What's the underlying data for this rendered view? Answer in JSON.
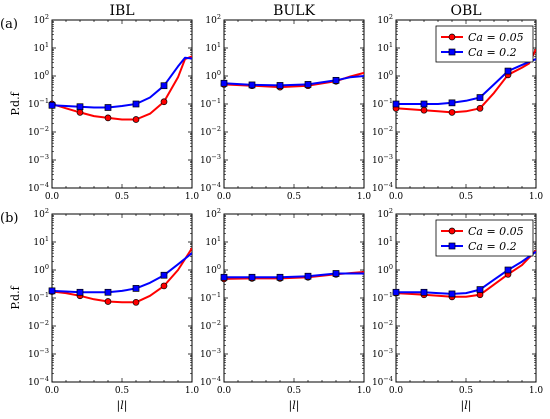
{
  "chart_data": [
    {
      "type": "line",
      "panel": "(a)",
      "row": 0,
      "col": 0,
      "title": "IBL",
      "ylabel": "P.d.f",
      "xlabel": "",
      "xlim": [
        0.0,
        1.0
      ],
      "ylim": [
        0.0001,
        100
      ],
      "yscale": "log",
      "legend": null,
      "series": [
        {
          "name": "Ca = 0.05",
          "color": "#ff0000",
          "marker": "circle",
          "x": [
            0.0,
            0.1,
            0.2,
            0.3,
            0.4,
            0.5,
            0.6,
            0.7,
            0.8,
            0.9,
            0.95,
            1.0
          ],
          "y": [
            0.1,
            0.07,
            0.05,
            0.037,
            0.032,
            0.028,
            0.028,
            0.045,
            0.12,
            0.9,
            4.0,
            5.0
          ],
          "markers_x": [
            0.0,
            0.2,
            0.4,
            0.6,
            0.8
          ]
        },
        {
          "name": "Ca = 0.2",
          "color": "#0000ff",
          "marker": "square",
          "x": [
            0.0,
            0.1,
            0.2,
            0.3,
            0.4,
            0.5,
            0.6,
            0.7,
            0.8,
            0.9,
            0.95,
            1.0
          ],
          "y": [
            0.09,
            0.085,
            0.08,
            0.075,
            0.075,
            0.085,
            0.1,
            0.17,
            0.45,
            2.2,
            4.5,
            4.2
          ],
          "markers_x": [
            0.0,
            0.2,
            0.4,
            0.6,
            0.8
          ]
        }
      ]
    },
    {
      "type": "line",
      "panel": "",
      "row": 0,
      "col": 1,
      "title": "BULK",
      "ylabel": "",
      "xlabel": "",
      "xlim": [
        0.0,
        1.0
      ],
      "ylim": [
        0.0001,
        100
      ],
      "yscale": "log",
      "legend": null,
      "series": [
        {
          "name": "Ca = 0.05",
          "color": "#ff0000",
          "marker": "circle",
          "x": [
            0.0,
            0.2,
            0.4,
            0.6,
            0.8,
            0.9,
            1.0
          ],
          "y": [
            0.5,
            0.45,
            0.4,
            0.45,
            0.65,
            0.95,
            1.3
          ],
          "markers_x": [
            0.0,
            0.2,
            0.4,
            0.6,
            0.8
          ]
        },
        {
          "name": "Ca = 0.2",
          "color": "#0000ff",
          "marker": "square",
          "x": [
            0.0,
            0.2,
            0.4,
            0.6,
            0.8,
            0.9,
            1.0
          ],
          "y": [
            0.55,
            0.48,
            0.46,
            0.5,
            0.7,
            0.9,
            1.0
          ],
          "markers_x": [
            0.0,
            0.2,
            0.4,
            0.6,
            0.8
          ]
        }
      ]
    },
    {
      "type": "line",
      "panel": "",
      "row": 0,
      "col": 2,
      "title": "OBL",
      "ylabel": "",
      "xlabel": "",
      "xlim": [
        0.0,
        1.0
      ],
      "ylim": [
        0.0001,
        100
      ],
      "yscale": "log",
      "legend": "top-right",
      "series": [
        {
          "name": "Ca = 0.05",
          "color": "#ff0000",
          "marker": "circle",
          "x": [
            0.0,
            0.1,
            0.2,
            0.3,
            0.4,
            0.5,
            0.6,
            0.7,
            0.8,
            0.9,
            0.95,
            1.0
          ],
          "y": [
            0.07,
            0.065,
            0.06,
            0.055,
            0.05,
            0.055,
            0.07,
            0.25,
            1.1,
            2.0,
            2.8,
            9.0
          ],
          "markers_x": [
            0.0,
            0.2,
            0.4,
            0.6,
            0.8
          ]
        },
        {
          "name": "Ca = 0.2",
          "color": "#0000ff",
          "marker": "square",
          "x": [
            0.0,
            0.1,
            0.2,
            0.3,
            0.4,
            0.5,
            0.6,
            0.7,
            0.8,
            0.9,
            0.95,
            1.0
          ],
          "y": [
            0.1,
            0.1,
            0.1,
            0.1,
            0.11,
            0.13,
            0.17,
            0.5,
            1.5,
            2.5,
            3.2,
            4.0
          ],
          "markers_x": [
            0.0,
            0.2,
            0.4,
            0.6,
            0.8
          ]
        }
      ]
    },
    {
      "type": "line",
      "panel": "(b)",
      "row": 1,
      "col": 0,
      "title": "",
      "ylabel": "P.d.f",
      "xlabel": "|l|",
      "xlim": [
        0.0,
        1.0
      ],
      "ylim": [
        0.0001,
        100
      ],
      "yscale": "log",
      "legend": null,
      "series": [
        {
          "name": "Ca = 0.05",
          "color": "#ff0000",
          "marker": "circle",
          "x": [
            0.0,
            0.1,
            0.2,
            0.3,
            0.4,
            0.5,
            0.6,
            0.7,
            0.8,
            0.9,
            1.0
          ],
          "y": [
            0.17,
            0.15,
            0.12,
            0.09,
            0.075,
            0.07,
            0.07,
            0.12,
            0.27,
            1.0,
            6.0
          ],
          "markers_x": [
            0.0,
            0.2,
            0.4,
            0.6,
            0.8
          ]
        },
        {
          "name": "Ca = 0.2",
          "color": "#0000ff",
          "marker": "square",
          "x": [
            0.0,
            0.1,
            0.2,
            0.3,
            0.4,
            0.5,
            0.6,
            0.7,
            0.8,
            0.9,
            1.0
          ],
          "y": [
            0.18,
            0.17,
            0.16,
            0.16,
            0.16,
            0.18,
            0.22,
            0.35,
            0.65,
            1.6,
            4.0
          ],
          "markers_x": [
            0.0,
            0.2,
            0.4,
            0.6,
            0.8
          ]
        }
      ]
    },
    {
      "type": "line",
      "panel": "",
      "row": 1,
      "col": 1,
      "title": "",
      "ylabel": "",
      "xlabel": "|l|",
      "xlim": [
        0.0,
        1.0
      ],
      "ylim": [
        0.0001,
        100
      ],
      "yscale": "log",
      "legend": null,
      "series": [
        {
          "name": "Ca = 0.05",
          "color": "#ff0000",
          "marker": "circle",
          "x": [
            0.0,
            0.2,
            0.4,
            0.6,
            0.8,
            1.0
          ],
          "y": [
            0.48,
            0.5,
            0.5,
            0.55,
            0.7,
            0.85
          ],
          "markers_x": [
            0.0,
            0.2,
            0.4,
            0.6,
            0.8
          ]
        },
        {
          "name": "Ca = 0.2",
          "color": "#0000ff",
          "marker": "square",
          "x": [
            0.0,
            0.2,
            0.4,
            0.6,
            0.8,
            1.0
          ],
          "y": [
            0.55,
            0.55,
            0.55,
            0.6,
            0.75,
            0.75
          ],
          "markers_x": [
            0.0,
            0.2,
            0.4,
            0.6,
            0.8
          ]
        }
      ]
    },
    {
      "type": "line",
      "panel": "",
      "row": 1,
      "col": 2,
      "title": "",
      "ylabel": "",
      "xlabel": "|l|",
      "xlim": [
        0.0,
        1.0
      ],
      "ylim": [
        0.0001,
        100
      ],
      "yscale": "log",
      "legend": "top-right",
      "series": [
        {
          "name": "Ca = 0.05",
          "color": "#ff0000",
          "marker": "circle",
          "x": [
            0.0,
            0.1,
            0.2,
            0.3,
            0.4,
            0.5,
            0.6,
            0.7,
            0.8,
            0.9,
            1.0
          ],
          "y": [
            0.15,
            0.14,
            0.13,
            0.12,
            0.11,
            0.11,
            0.13,
            0.3,
            0.7,
            1.5,
            5.0
          ],
          "markers_x": [
            0.0,
            0.2,
            0.4,
            0.6,
            0.8
          ]
        },
        {
          "name": "Ca = 0.2",
          "color": "#0000ff",
          "marker": "square",
          "x": [
            0.0,
            0.1,
            0.2,
            0.3,
            0.4,
            0.5,
            0.6,
            0.7,
            0.8,
            0.9,
            1.0
          ],
          "y": [
            0.16,
            0.16,
            0.16,
            0.15,
            0.14,
            0.15,
            0.2,
            0.45,
            1.0,
            2.0,
            4.5
          ],
          "markers_x": [
            0.0,
            0.2,
            0.4,
            0.6,
            0.8
          ]
        }
      ]
    }
  ]
}
